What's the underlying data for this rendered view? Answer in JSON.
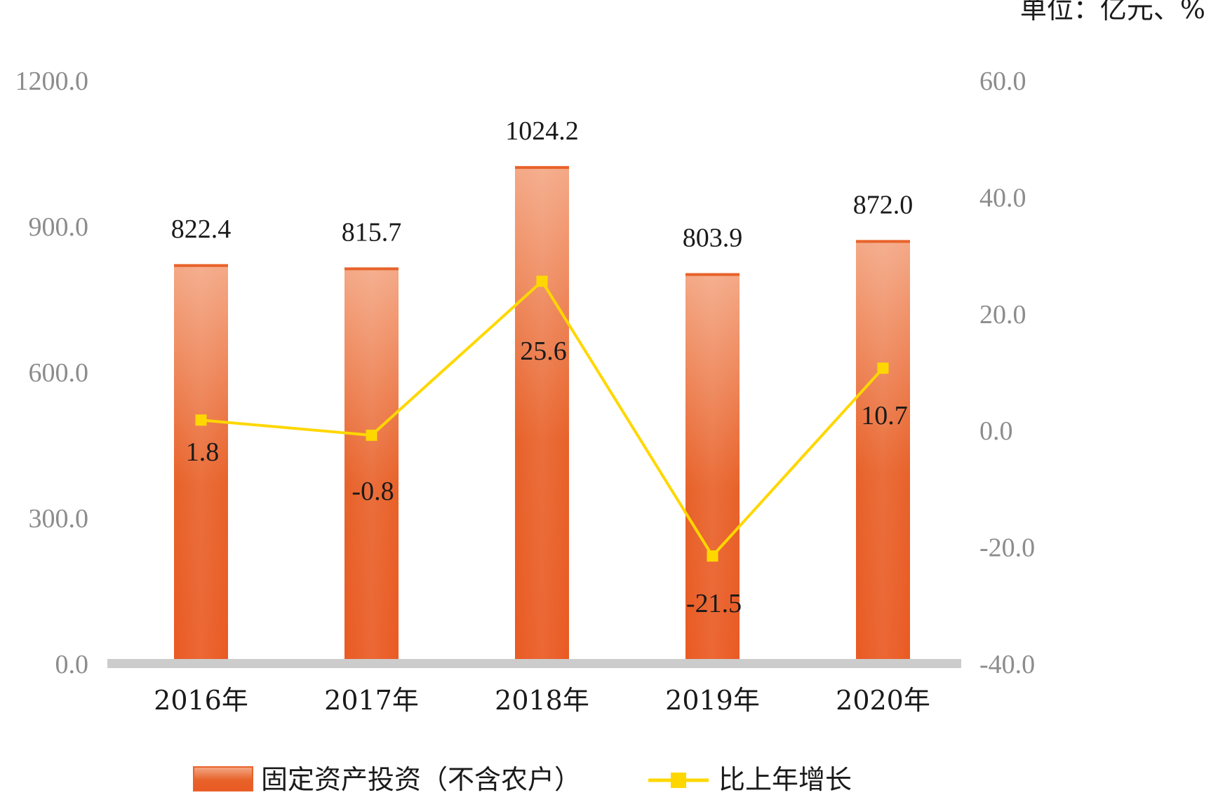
{
  "chart_data": {
    "type": "bar",
    "unit_label": "单位：亿元、%",
    "categories": [
      "2016年",
      "2017年",
      "2018年",
      "2019年",
      "2020年"
    ],
    "series": [
      {
        "name": "固定资产投资（不含农户）",
        "type": "bar",
        "axis": "left",
        "values": [
          822.4,
          815.7,
          1024.2,
          803.9,
          872.0
        ],
        "labels": [
          "822.4",
          "815.7",
          "1024.2",
          "803.9",
          "872.0"
        ],
        "color": "#e8622a"
      },
      {
        "name": "比上年增长",
        "type": "line",
        "axis": "right",
        "values": [
          1.8,
          -0.8,
          25.6,
          -21.5,
          10.7
        ],
        "labels": [
          "1.8",
          "-0.8",
          "25.6",
          "-21.5",
          "10.7"
        ],
        "color": "#ffd700"
      }
    ],
    "y_left": {
      "ylim": [
        0,
        1200
      ],
      "ticks": [
        "0.0",
        "300.0",
        "600.0",
        "900.0",
        "1200.0"
      ],
      "tick_values": [
        0,
        300,
        600,
        900,
        1200
      ]
    },
    "y_right": {
      "ylim": [
        -40,
        60
      ],
      "ticks": [
        "-40.0",
        "-20.0",
        "0.0",
        "20.0",
        "40.0",
        "60.0"
      ],
      "tick_values": [
        -40,
        -20,
        0,
        20,
        40,
        60
      ]
    },
    "grid": false,
    "legend_position": "bottom",
    "colors": {
      "bar_top": "#f4a987",
      "bar_mid": "#e8622a",
      "bar_bottom": "#ea5a23",
      "line": "#ffd700",
      "axis_base": "#cccccc",
      "tick_text": "#8c8c8c"
    }
  }
}
